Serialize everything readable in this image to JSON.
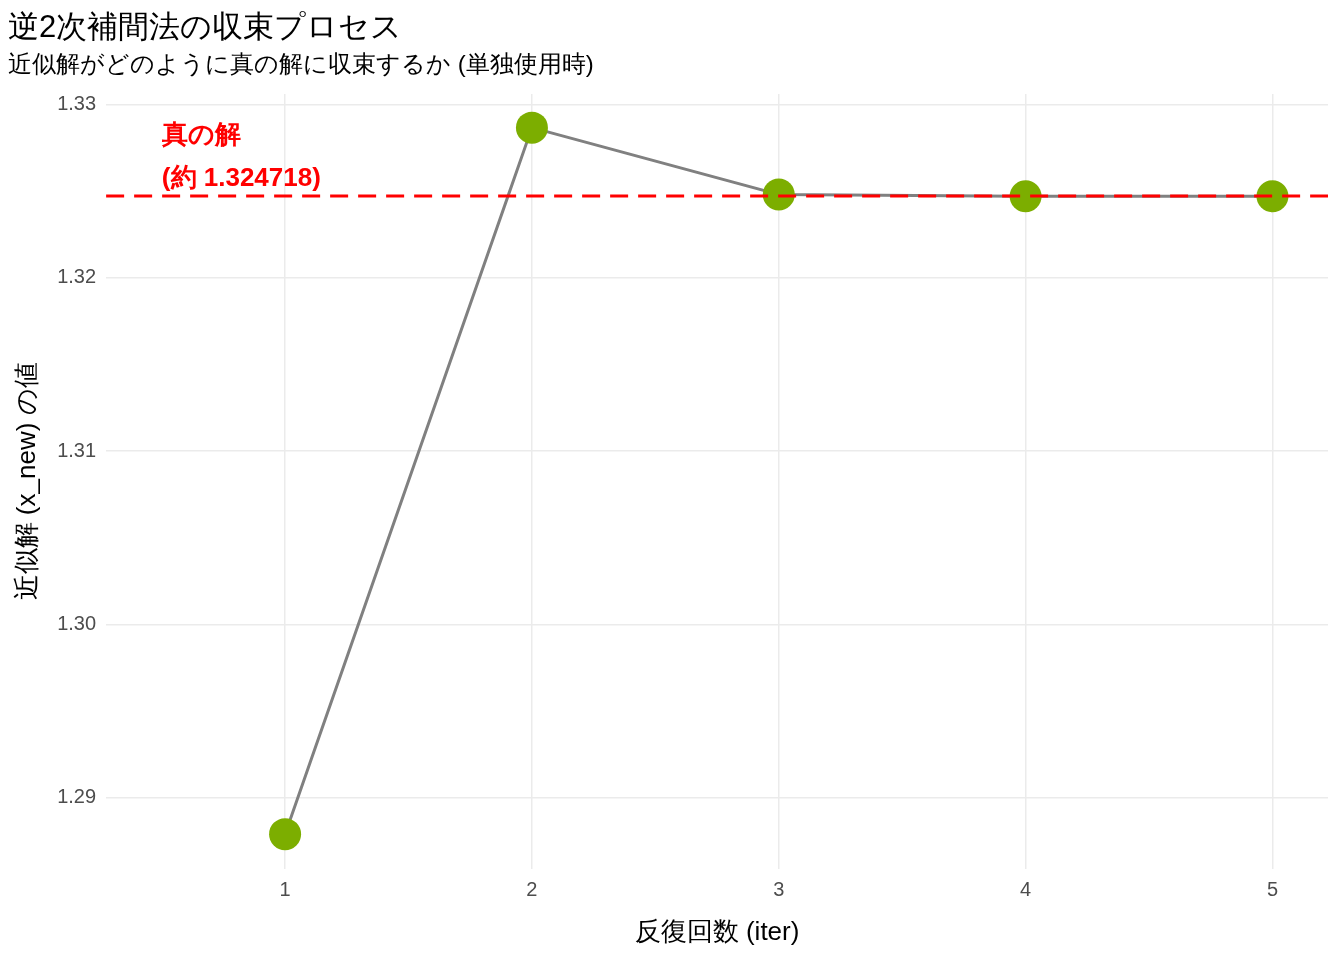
{
  "chart_data": {
    "type": "line",
    "title": "逆2次補間法の収束プロセス",
    "subtitle": "近似解がどのように真の解に収束するか (単独使用時)",
    "xlabel": "反復回数 (iter)",
    "ylabel": "近似解 (x_new) の値",
    "x": [
      1,
      2,
      3,
      4,
      5
    ],
    "series": [
      {
        "color": "#7cae00",
        "values": [
          1.2879,
          1.32866,
          1.3248,
          1.3247,
          1.3247
        ]
      }
    ],
    "xlim": [
      0.275,
      5.225
    ],
    "xticks": [
      1,
      2,
      3,
      4,
      5
    ],
    "ylim": [
      1.2859,
      1.3306
    ],
    "yticks": [
      {
        "value": 1.29,
        "label": "1.29"
      },
      {
        "value": 1.3,
        "label": "1.30"
      },
      {
        "value": 1.31,
        "label": "1.31"
      },
      {
        "value": 1.32,
        "label": "1.32"
      },
      {
        "value": 1.33,
        "label": "1.33"
      }
    ],
    "ref_lines": [
      {
        "axis": "y",
        "value": 1.324718,
        "label": "真の解\n(約 1.324718)",
        "color": "#ff0000",
        "line_style": "dashed"
      }
    ],
    "grid": true,
    "marker": "circle",
    "line_style": "solid"
  }
}
